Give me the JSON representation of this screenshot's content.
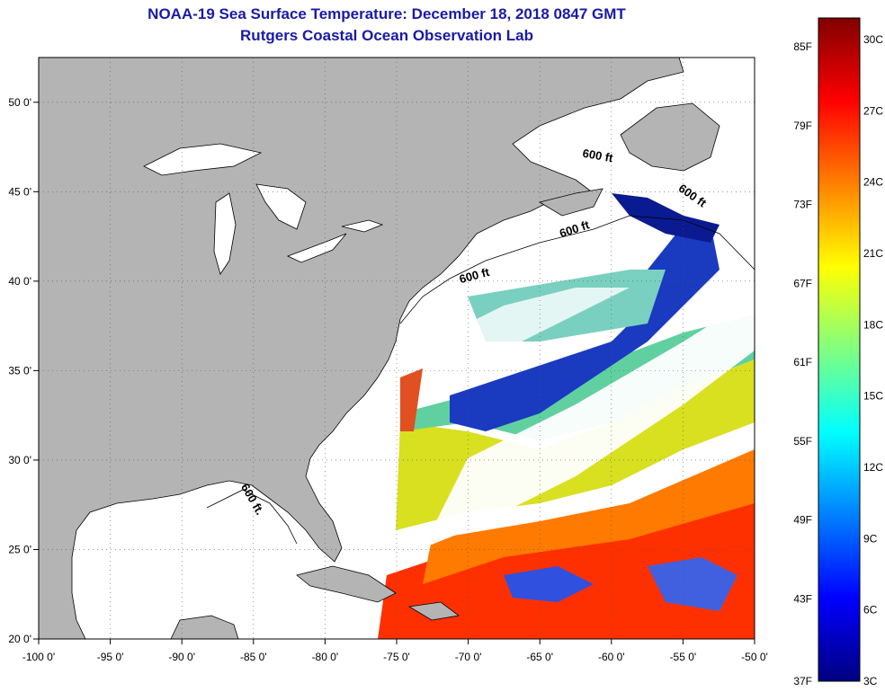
{
  "title": {
    "line1": "NOAA-19 Sea Surface Temperature:  December 18, 2018 0847 GMT",
    "line2": "Rutgers Coastal Ocean Observation Lab"
  },
  "map": {
    "lon_range": [
      -100,
      -50
    ],
    "lat_range": [
      20,
      52.5
    ],
    "lon_ticks": [
      {
        "value": -100,
        "label": "-100 0'"
      },
      {
        "value": -95,
        "label": "-95 0'"
      },
      {
        "value": -90,
        "label": "-90 0'"
      },
      {
        "value": -85,
        "label": "-85 0'"
      },
      {
        "value": -80,
        "label": "-80 0'"
      },
      {
        "value": -75,
        "label": "-75 0'"
      },
      {
        "value": -70,
        "label": "-70 0'"
      },
      {
        "value": -65,
        "label": "-65 0'"
      },
      {
        "value": -60,
        "label": "-60 0'"
      },
      {
        "value": -55,
        "label": "-55 0'"
      },
      {
        "value": -50,
        "label": "-50 0'"
      }
    ],
    "lat_ticks": [
      {
        "value": 20,
        "label": "20 0'"
      },
      {
        "value": 25,
        "label": "25 0'"
      },
      {
        "value": 30,
        "label": "30 0'"
      },
      {
        "value": 35,
        "label": "35 0'"
      },
      {
        "value": 40,
        "label": "40 0'"
      },
      {
        "value": 45,
        "label": "45 0'"
      },
      {
        "value": 50,
        "label": "50 0'"
      }
    ],
    "depth_labels": [
      {
        "text": "600 ft",
        "lon": -61,
        "lat": 46.8,
        "rotate": 10
      },
      {
        "text": "600 ft",
        "lon": -54.5,
        "lat": 44.6,
        "rotate": 35
      },
      {
        "text": "600 ft",
        "lon": -62.5,
        "lat": 42.7,
        "rotate": -18
      },
      {
        "text": "600 ft",
        "lon": -69.5,
        "lat": 40.1,
        "rotate": -15
      },
      {
        "text": "600 ft.",
        "lon": -85.3,
        "lat": 27.7,
        "rotate": 60
      }
    ],
    "colors": {
      "land": "#b4b4b4",
      "cloud": "#ffffff",
      "coast": "#000000",
      "grid": "#555555"
    }
  },
  "colorbar": {
    "f_labels": [
      "85F",
      "79F",
      "73F",
      "67F",
      "61F",
      "55F",
      "49F",
      "43F",
      "37F"
    ],
    "c_labels": [
      "30C",
      "27C",
      "24C",
      "21C",
      "18C",
      "15C",
      "12C",
      "9C",
      "6C",
      "3C"
    ],
    "stops": [
      "#800000",
      "#ff0000",
      "#ff8000",
      "#ffff00",
      "#80ff80",
      "#00ffff",
      "#0080ff",
      "#0000ff",
      "#000080"
    ]
  }
}
